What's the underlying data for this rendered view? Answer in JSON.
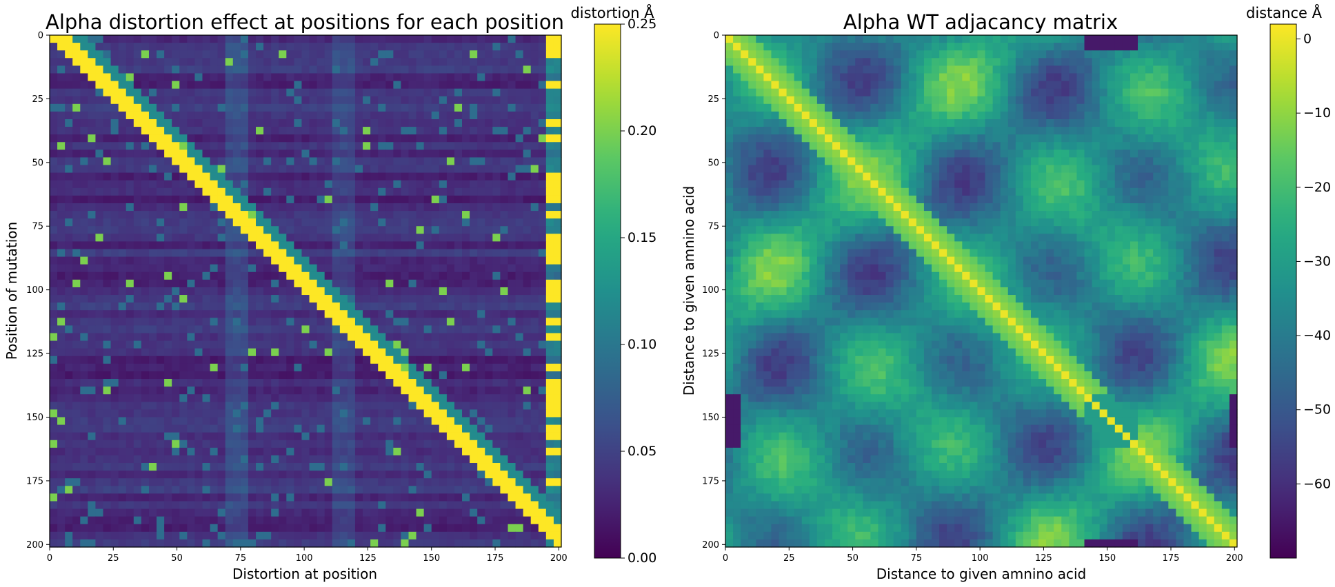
{
  "chart_data": [
    {
      "type": "heatmap",
      "title": "Alpha distortion effect at positions for each position",
      "xlabel": "Distortion at position",
      "ylabel": "Position of mutation",
      "xlim": [
        0,
        201
      ],
      "ylim": [
        201,
        0
      ],
      "xticks": [
        "0",
        "25",
        "50",
        "75",
        "100",
        "125",
        "150",
        "175",
        "200"
      ],
      "yticks": [
        "0",
        "25",
        "50",
        "75",
        "100",
        "125",
        "150",
        "175",
        "200"
      ],
      "colormap": "viridis",
      "colorbar": {
        "label": "distortion Å",
        "range": [
          0.0,
          0.25
        ],
        "ticks": [
          "0.00",
          "0.05",
          "0.10",
          "0.15",
          "0.20",
          "0.25"
        ]
      },
      "features": {
        "diagonal_band": "high distortion (~0.25) along the diagonal, each mutation strongly distorts positions just after it",
        "background": "mostly ~0.01-0.05",
        "right_edge_column": "positions ~195-200 often high"
      }
    },
    {
      "type": "heatmap",
      "title": "Alpha WT adjacancy matrix",
      "xlabel": "Distance to given amnino acid",
      "ylabel": "Distance to given amnino acid",
      "xlim": [
        0,
        201
      ],
      "ylim": [
        201,
        0
      ],
      "xticks": [
        "0",
        "25",
        "50",
        "75",
        "100",
        "125",
        "150",
        "175",
        "200"
      ],
      "yticks": [
        "0",
        "25",
        "50",
        "75",
        "100",
        "125",
        "150",
        "175",
        "200"
      ],
      "colormap": "viridis",
      "colorbar": {
        "label": "distance Å",
        "range": [
          -70,
          2
        ],
        "ticks": [
          "0",
          "−10",
          "−20",
          "−30",
          "−40",
          "−50",
          "−60"
        ]
      },
      "features": {
        "diagonal": "0 on the main diagonal (yellow)",
        "pattern": "symmetric, periodic yellow contact ridges with dark blue pockets near (150,150)"
      }
    }
  ],
  "colors": {
    "viridis_low": "#440154",
    "viridis_mid": "#21918c",
    "viridis_high": "#fde725"
  }
}
